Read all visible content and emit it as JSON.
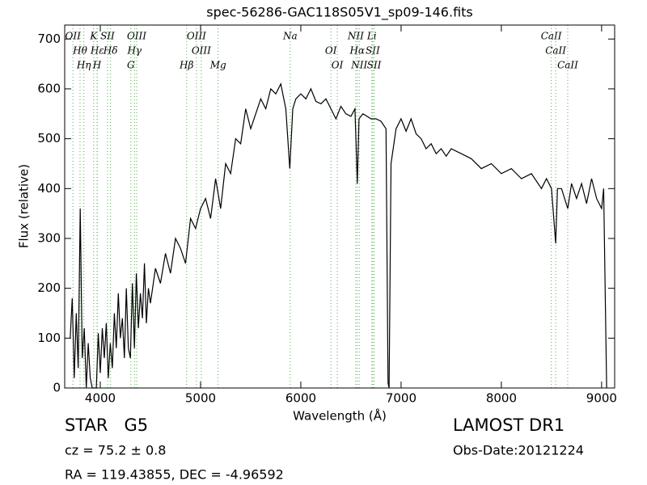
{
  "chart_data": {
    "type": "line",
    "title": "spec-56286-GAC118S05V1_sp09-146.fits",
    "x_label": "Wavelength (Å)",
    "y_label": "Flux (relative)",
    "xlim": [
      3645,
      9130
    ],
    "ylim": [
      0,
      728
    ],
    "xticks": [
      4000,
      5000,
      6000,
      7000,
      8000,
      9000
    ],
    "yticks": [
      0,
      100,
      200,
      300,
      400,
      500,
      600,
      700
    ],
    "series": [
      {
        "name": "spectrum",
        "color": "#000000",
        "x": [
          3700,
          3720,
          3740,
          3760,
          3780,
          3800,
          3820,
          3840,
          3860,
          3880,
          3900,
          3920,
          3940,
          3960,
          3980,
          4000,
          4020,
          4040,
          4060,
          4080,
          4100,
          4120,
          4140,
          4160,
          4180,
          4200,
          4220,
          4240,
          4260,
          4280,
          4300,
          4320,
          4340,
          4360,
          4380,
          4400,
          4420,
          4440,
          4460,
          4480,
          4500,
          4550,
          4600,
          4650,
          4700,
          4750,
          4800,
          4850,
          4900,
          4950,
          5000,
          5050,
          5100,
          5150,
          5200,
          5250,
          5300,
          5350,
          5400,
          5450,
          5500,
          5550,
          5600,
          5650,
          5700,
          5750,
          5800,
          5850,
          5890,
          5920,
          5950,
          6000,
          6050,
          6100,
          6150,
          6200,
          6250,
          6300,
          6350,
          6400,
          6450,
          6500,
          6540,
          6563,
          6580,
          6620,
          6660,
          6700,
          6750,
          6800,
          6850,
          6870,
          6880,
          6900,
          6950,
          7000,
          7050,
          7100,
          7150,
          7200,
          7250,
          7300,
          7350,
          7400,
          7450,
          7500,
          7600,
          7700,
          7800,
          7900,
          8000,
          8100,
          8200,
          8300,
          8400,
          8450,
          8500,
          8542,
          8560,
          8600,
          8662,
          8700,
          8750,
          8800,
          8850,
          8900,
          8950,
          9000,
          9020,
          9050
        ],
        "values": [
          100,
          180,
          20,
          150,
          40,
          360,
          60,
          120,
          0,
          90,
          20,
          0,
          0,
          0,
          110,
          30,
          120,
          60,
          130,
          20,
          90,
          40,
          150,
          80,
          190,
          100,
          140,
          60,
          200,
          80,
          60,
          210,
          80,
          230,
          120,
          190,
          140,
          250,
          130,
          200,
          170,
          240,
          210,
          270,
          230,
          300,
          280,
          250,
          340,
          320,
          360,
          380,
          340,
          420,
          360,
          450,
          430,
          500,
          490,
          560,
          520,
          550,
          580,
          560,
          600,
          590,
          610,
          560,
          440,
          560,
          580,
          590,
          580,
          600,
          575,
          570,
          580,
          560,
          540,
          565,
          550,
          545,
          560,
          410,
          540,
          550,
          545,
          540,
          540,
          535,
          520,
          10,
          0,
          450,
          520,
          540,
          515,
          540,
          510,
          500,
          480,
          490,
          470,
          480,
          465,
          480,
          470,
          460,
          440,
          450,
          430,
          440,
          420,
          430,
          400,
          420,
          400,
          290,
          400,
          400,
          360,
          410,
          380,
          410,
          370,
          420,
          380,
          360,
          400,
          0
        ]
      }
    ],
    "spectral_lines": [
      {
        "label": "OII",
        "x": 3727
      },
      {
        "label": "Hθ",
        "x": 3798
      },
      {
        "label": "Hη",
        "x": 3836
      },
      {
        "label": "K",
        "x": 3934
      },
      {
        "label": "Hε",
        "x": 3970
      },
      {
        "label": "H",
        "x": 3968
      },
      {
        "label": "SII",
        "x": 4072
      },
      {
        "label": "Hδ",
        "x": 4102
      },
      {
        "label": "G",
        "x": 4305
      },
      {
        "label": "OIII",
        "x": 4363
      },
      {
        "label": "Hγ",
        "x": 4341
      },
      {
        "label": "Hβ",
        "x": 4861
      },
      {
        "label": "OIII",
        "x": 4959
      },
      {
        "label": "OIII",
        "x": 5007
      },
      {
        "label": "Mg",
        "x": 5175
      },
      {
        "label": "Na",
        "x": 5894
      },
      {
        "label": "OI",
        "x": 6300
      },
      {
        "label": "OI",
        "x": 6364
      },
      {
        "label": "NII",
        "x": 6548
      },
      {
        "label": "Hα",
        "x": 6563
      },
      {
        "label": "NII",
        "x": 6583
      },
      {
        "label": "Li",
        "x": 6708
      },
      {
        "label": "SII",
        "x": 6717
      },
      {
        "label": "SII",
        "x": 6731
      },
      {
        "label": "CaII",
        "x": 8498
      },
      {
        "label": "CaII",
        "x": 8542
      },
      {
        "label": "CaII",
        "x": 8662
      }
    ],
    "line_color": "#4daf4a"
  },
  "footer": {
    "object": "STAR   G5",
    "cz": "cz = 75.2 ± 0.8",
    "coords": "RA = 119.43855, DEC = -4.96592",
    "survey": "LAMOST DR1",
    "obs_date": "Obs-Date:20121224"
  }
}
